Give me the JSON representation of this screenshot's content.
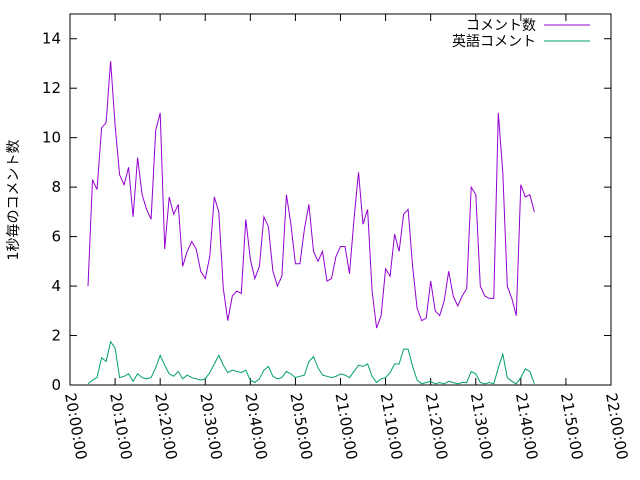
{
  "chart_data": {
    "type": "line",
    "ylabel": "1秒毎のコメント数",
    "xlabel": "",
    "ylim": [
      0,
      15
    ],
    "xlim": [
      "20:00:00",
      "22:00:00"
    ],
    "x_ticks": [
      "20:00:00",
      "20:10:00",
      "20:20:00",
      "20:30:00",
      "20:40:00",
      "20:50:00",
      "21:00:00",
      "21:10:00",
      "21:20:00",
      "21:30:00",
      "21:40:00",
      "21:50:00",
      "22:00:00"
    ],
    "y_ticks": [
      "0",
      "2",
      "4",
      "6",
      "8",
      "10",
      "12",
      "14"
    ],
    "legend_position": "top-right",
    "grid": false,
    "series": [
      {
        "name": "コメント数",
        "color": "#9400d3",
        "points": [
          [
            "20:04:00",
            4.0
          ],
          [
            "20:05:00",
            8.3
          ],
          [
            "20:06:00",
            7.9
          ],
          [
            "20:07:00",
            10.4
          ],
          [
            "20:08:00",
            10.6
          ],
          [
            "20:09:00",
            13.1
          ],
          [
            "20:10:00",
            10.5
          ],
          [
            "20:11:00",
            8.5
          ],
          [
            "20:12:00",
            8.1
          ],
          [
            "20:13:00",
            8.8
          ],
          [
            "20:14:00",
            6.8
          ],
          [
            "20:15:00",
            9.2
          ],
          [
            "20:16:00",
            7.7
          ],
          [
            "20:17:00",
            7.1
          ],
          [
            "20:18:00",
            6.7
          ],
          [
            "20:19:00",
            10.3
          ],
          [
            "20:20:00",
            11.0
          ],
          [
            "20:21:00",
            5.5
          ],
          [
            "20:22:00",
            7.6
          ],
          [
            "20:23:00",
            6.9
          ],
          [
            "20:24:00",
            7.3
          ],
          [
            "20:25:00",
            4.8
          ],
          [
            "20:26:00",
            5.4
          ],
          [
            "20:27:00",
            5.8
          ],
          [
            "20:28:00",
            5.5
          ],
          [
            "20:29:00",
            4.6
          ],
          [
            "20:30:00",
            4.3
          ],
          [
            "20:31:00",
            5.2
          ],
          [
            "20:32:00",
            7.6
          ],
          [
            "20:33:00",
            7.0
          ],
          [
            "20:34:00",
            3.9
          ],
          [
            "20:35:00",
            2.6
          ],
          [
            "20:36:00",
            3.6
          ],
          [
            "20:37:00",
            3.8
          ],
          [
            "20:38:00",
            3.7
          ],
          [
            "20:39:00",
            6.7
          ],
          [
            "20:40:00",
            5.1
          ],
          [
            "20:41:00",
            4.3
          ],
          [
            "20:42:00",
            4.8
          ],
          [
            "20:43:00",
            6.8
          ],
          [
            "20:44:00",
            6.4
          ],
          [
            "20:45:00",
            4.6
          ],
          [
            "20:46:00",
            4.0
          ],
          [
            "20:47:00",
            4.4
          ],
          [
            "20:48:00",
            7.7
          ],
          [
            "20:49:00",
            6.5
          ],
          [
            "20:50:00",
            4.9
          ],
          [
            "20:51:00",
            4.9
          ],
          [
            "20:52:00",
            6.3
          ],
          [
            "20:53:00",
            7.3
          ],
          [
            "20:54:00",
            5.4
          ],
          [
            "20:55:00",
            5.0
          ],
          [
            "20:56:00",
            5.4
          ],
          [
            "20:57:00",
            4.2
          ],
          [
            "20:58:00",
            4.3
          ],
          [
            "20:59:00",
            5.2
          ],
          [
            "21:00:00",
            5.6
          ],
          [
            "21:01:00",
            5.6
          ],
          [
            "21:02:00",
            4.5
          ],
          [
            "21:03:00",
            6.7
          ],
          [
            "21:04:00",
            8.6
          ],
          [
            "21:05:00",
            6.5
          ],
          [
            "21:06:00",
            7.1
          ],
          [
            "21:07:00",
            3.8
          ],
          [
            "21:08:00",
            2.3
          ],
          [
            "21:09:00",
            2.8
          ],
          [
            "21:10:00",
            4.7
          ],
          [
            "21:11:00",
            4.4
          ],
          [
            "21:12:00",
            6.1
          ],
          [
            "21:13:00",
            5.4
          ],
          [
            "21:14:00",
            6.9
          ],
          [
            "21:15:00",
            7.1
          ],
          [
            "21:16:00",
            4.8
          ],
          [
            "21:17:00",
            3.1
          ],
          [
            "21:18:00",
            2.6
          ],
          [
            "21:19:00",
            2.7
          ],
          [
            "21:20:00",
            4.2
          ],
          [
            "21:21:00",
            3.0
          ],
          [
            "21:22:00",
            2.8
          ],
          [
            "21:23:00",
            3.4
          ],
          [
            "21:24:00",
            4.6
          ],
          [
            "21:25:00",
            3.6
          ],
          [
            "21:26:00",
            3.2
          ],
          [
            "21:27:00",
            3.6
          ],
          [
            "21:28:00",
            3.9
          ],
          [
            "21:29:00",
            8.0
          ],
          [
            "21:30:00",
            7.7
          ],
          [
            "21:31:00",
            4.0
          ],
          [
            "21:32:00",
            3.6
          ],
          [
            "21:33:00",
            3.5
          ],
          [
            "21:34:00",
            3.5
          ],
          [
            "21:35:00",
            11.0
          ],
          [
            "21:36:00",
            8.6
          ],
          [
            "21:37:00",
            4.0
          ],
          [
            "21:38:00",
            3.5
          ],
          [
            "21:39:00",
            2.8
          ],
          [
            "21:40:00",
            8.1
          ],
          [
            "21:41:00",
            7.6
          ],
          [
            "21:42:00",
            7.7
          ],
          [
            "21:43:00",
            7.0
          ]
        ]
      },
      {
        "name": "英語コメント",
        "color": "#009e73",
        "points": [
          [
            "20:04:00",
            0.05
          ],
          [
            "20:05:00",
            0.2
          ],
          [
            "20:06:00",
            0.3
          ],
          [
            "20:07:00",
            1.1
          ],
          [
            "20:08:00",
            0.95
          ],
          [
            "20:09:00",
            1.75
          ],
          [
            "20:10:00",
            1.5
          ],
          [
            "20:11:00",
            0.3
          ],
          [
            "20:12:00",
            0.35
          ],
          [
            "20:13:00",
            0.45
          ],
          [
            "20:14:00",
            0.15
          ],
          [
            "20:15:00",
            0.45
          ],
          [
            "20:16:00",
            0.3
          ],
          [
            "20:17:00",
            0.25
          ],
          [
            "20:18:00",
            0.3
          ],
          [
            "20:19:00",
            0.7
          ],
          [
            "20:20:00",
            1.2
          ],
          [
            "20:21:00",
            0.8
          ],
          [
            "20:22:00",
            0.45
          ],
          [
            "20:23:00",
            0.35
          ],
          [
            "20:24:00",
            0.55
          ],
          [
            "20:25:00",
            0.25
          ],
          [
            "20:26:00",
            0.4
          ],
          [
            "20:27:00",
            0.3
          ],
          [
            "20:28:00",
            0.25
          ],
          [
            "20:29:00",
            0.2
          ],
          [
            "20:30:00",
            0.25
          ],
          [
            "20:31:00",
            0.5
          ],
          [
            "20:32:00",
            0.85
          ],
          [
            "20:33:00",
            1.2
          ],
          [
            "20:34:00",
            0.8
          ],
          [
            "20:35:00",
            0.5
          ],
          [
            "20:36:00",
            0.6
          ],
          [
            "20:37:00",
            0.55
          ],
          [
            "20:38:00",
            0.5
          ],
          [
            "20:39:00",
            0.6
          ],
          [
            "20:40:00",
            0.2
          ],
          [
            "20:41:00",
            0.1
          ],
          [
            "20:42:00",
            0.25
          ],
          [
            "20:43:00",
            0.6
          ],
          [
            "20:44:00",
            0.75
          ],
          [
            "20:45:00",
            0.35
          ],
          [
            "20:46:00",
            0.25
          ],
          [
            "20:47:00",
            0.3
          ],
          [
            "20:48:00",
            0.55
          ],
          [
            "20:49:00",
            0.45
          ],
          [
            "20:50:00",
            0.3
          ],
          [
            "20:51:00",
            0.35
          ],
          [
            "20:52:00",
            0.4
          ],
          [
            "20:53:00",
            0.95
          ],
          [
            "20:54:00",
            1.15
          ],
          [
            "20:55:00",
            0.7
          ],
          [
            "20:56:00",
            0.4
          ],
          [
            "20:57:00",
            0.35
          ],
          [
            "20:58:00",
            0.3
          ],
          [
            "20:59:00",
            0.35
          ],
          [
            "21:00:00",
            0.45
          ],
          [
            "21:01:00",
            0.4
          ],
          [
            "21:02:00",
            0.3
          ],
          [
            "21:03:00",
            0.55
          ],
          [
            "21:04:00",
            0.8
          ],
          [
            "21:05:00",
            0.75
          ],
          [
            "21:06:00",
            0.85
          ],
          [
            "21:07:00",
            0.35
          ],
          [
            "21:08:00",
            0.1
          ],
          [
            "21:09:00",
            0.25
          ],
          [
            "21:10:00",
            0.3
          ],
          [
            "21:11:00",
            0.5
          ],
          [
            "21:12:00",
            0.85
          ],
          [
            "21:13:00",
            0.85
          ],
          [
            "21:14:00",
            1.45
          ],
          [
            "21:15:00",
            1.45
          ],
          [
            "21:16:00",
            0.75
          ],
          [
            "21:17:00",
            0.2
          ],
          [
            "21:18:00",
            0.05
          ],
          [
            "21:19:00",
            0.1
          ],
          [
            "21:20:00",
            0.15
          ],
          [
            "21:21:00",
            0.05
          ],
          [
            "21:22:00",
            0.1
          ],
          [
            "21:23:00",
            0.05
          ],
          [
            "21:24:00",
            0.15
          ],
          [
            "21:25:00",
            0.1
          ],
          [
            "21:26:00",
            0.05
          ],
          [
            "21:27:00",
            0.1
          ],
          [
            "21:28:00",
            0.1
          ],
          [
            "21:29:00",
            0.55
          ],
          [
            "21:30:00",
            0.45
          ],
          [
            "21:31:00",
            0.1
          ],
          [
            "21:32:00",
            0.05
          ],
          [
            "21:33:00",
            0.1
          ],
          [
            "21:34:00",
            0.05
          ],
          [
            "21:35:00",
            0.7
          ],
          [
            "21:36:00",
            1.25
          ],
          [
            "21:37:00",
            0.3
          ],
          [
            "21:38:00",
            0.15
          ],
          [
            "21:39:00",
            0.05
          ],
          [
            "21:40:00",
            0.3
          ],
          [
            "21:41:00",
            0.65
          ],
          [
            "21:42:00",
            0.55
          ],
          [
            "21:43:00",
            0.05
          ]
        ]
      }
    ]
  }
}
